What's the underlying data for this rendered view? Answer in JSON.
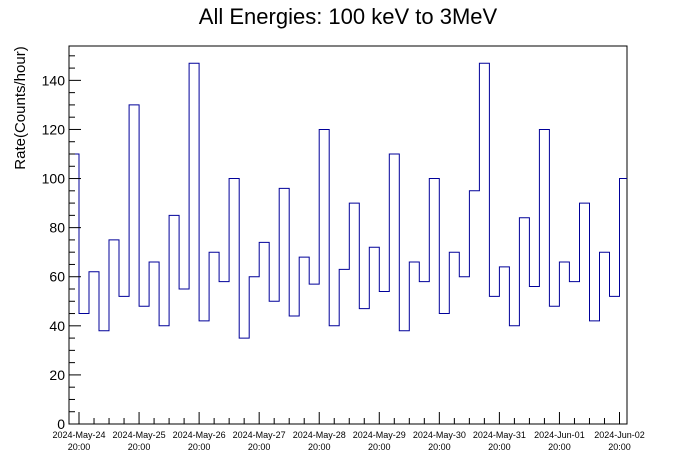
{
  "chart_data": {
    "type": "line",
    "title": "All Energies:  100 keV to 3MeV",
    "xlabel": "",
    "ylabel": "Rate(Counts/hour)",
    "ylim": [
      0,
      154
    ],
    "yticks": [
      0,
      20,
      40,
      60,
      80,
      100,
      120,
      140
    ],
    "xlim": [
      "2024-May-24 16:00",
      "2024-Jun-02 23:00"
    ],
    "xticks": [
      {
        "date": "2024-May-24",
        "time": "20:00"
      },
      {
        "date": "2024-May-25",
        "time": "20:00"
      },
      {
        "date": "2024-May-26",
        "time": "20:00"
      },
      {
        "date": "2024-May-27",
        "time": "20:00"
      },
      {
        "date": "2024-May-28",
        "time": "20:00"
      },
      {
        "date": "2024-May-29",
        "time": "20:00"
      },
      {
        "date": "2024-May-30",
        "time": "20:00"
      },
      {
        "date": "2024-May-31",
        "time": "20:00"
      },
      {
        "date": "2024-Jun-01",
        "time": "20:00"
      },
      {
        "date": "2024-Jun-02",
        "time": "20:00"
      }
    ],
    "grid": false,
    "legend": "none",
    "line_color": "#000099",
    "series": [
      {
        "x": [
          "2024-May-24 16:00",
          "2024-May-24 20:00",
          "2024-May-25 00:00",
          "2024-May-25 04:00",
          "2024-May-25 08:00",
          "2024-May-25 12:00",
          "2024-May-25 16:00",
          "2024-May-25 20:00",
          "2024-May-26 00:00",
          "2024-May-26 04:00",
          "2024-May-26 08:00",
          "2024-May-26 12:00",
          "2024-May-26 16:00",
          "2024-May-26 20:00",
          "2024-May-27 00:00",
          "2024-May-27 04:00",
          "2024-May-27 08:00",
          "2024-May-27 12:00",
          "2024-May-27 16:00",
          "2024-May-27 20:00",
          "2024-May-28 00:00",
          "2024-May-28 04:00",
          "2024-May-28 08:00",
          "2024-May-28 12:00",
          "2024-May-28 16:00",
          "2024-May-28 20:00",
          "2024-May-29 00:00",
          "2024-May-29 04:00",
          "2024-May-29 08:00",
          "2024-May-29 12:00",
          "2024-May-29 16:00",
          "2024-May-29 20:00",
          "2024-May-30 00:00",
          "2024-May-30 04:00",
          "2024-May-30 08:00",
          "2024-May-30 12:00",
          "2024-May-30 16:00",
          "2024-May-30 20:00",
          "2024-May-31 00:00",
          "2024-May-31 04:00",
          "2024-May-31 08:00",
          "2024-May-31 12:00",
          "2024-May-31 16:00",
          "2024-May-31 20:00",
          "2024-Jun-01 00:00",
          "2024-Jun-01 04:00",
          "2024-Jun-01 08:00",
          "2024-Jun-01 12:00",
          "2024-Jun-01 16:00",
          "2024-Jun-01 20:00",
          "2024-Jun-02 00:00",
          "2024-Jun-02 04:00",
          "2024-Jun-02 08:00",
          "2024-Jun-02 12:00",
          "2024-Jun-02 16:00",
          "2024-Jun-02 20:00"
        ],
        "y": [
          110,
          45,
          62,
          38,
          75,
          52,
          130,
          48,
          66,
          40,
          85,
          55,
          147,
          42,
          70,
          58,
          100,
          35,
          60,
          74,
          50,
          96,
          44,
          68,
          57,
          120,
          40,
          63,
          90,
          47,
          72,
          54,
          110,
          38,
          66,
          58,
          100,
          45,
          70,
          60,
          95,
          147,
          52,
          64,
          40,
          84,
          56,
          120,
          48,
          66,
          58,
          90,
          42,
          70,
          52,
          100
        ]
      }
    ]
  }
}
